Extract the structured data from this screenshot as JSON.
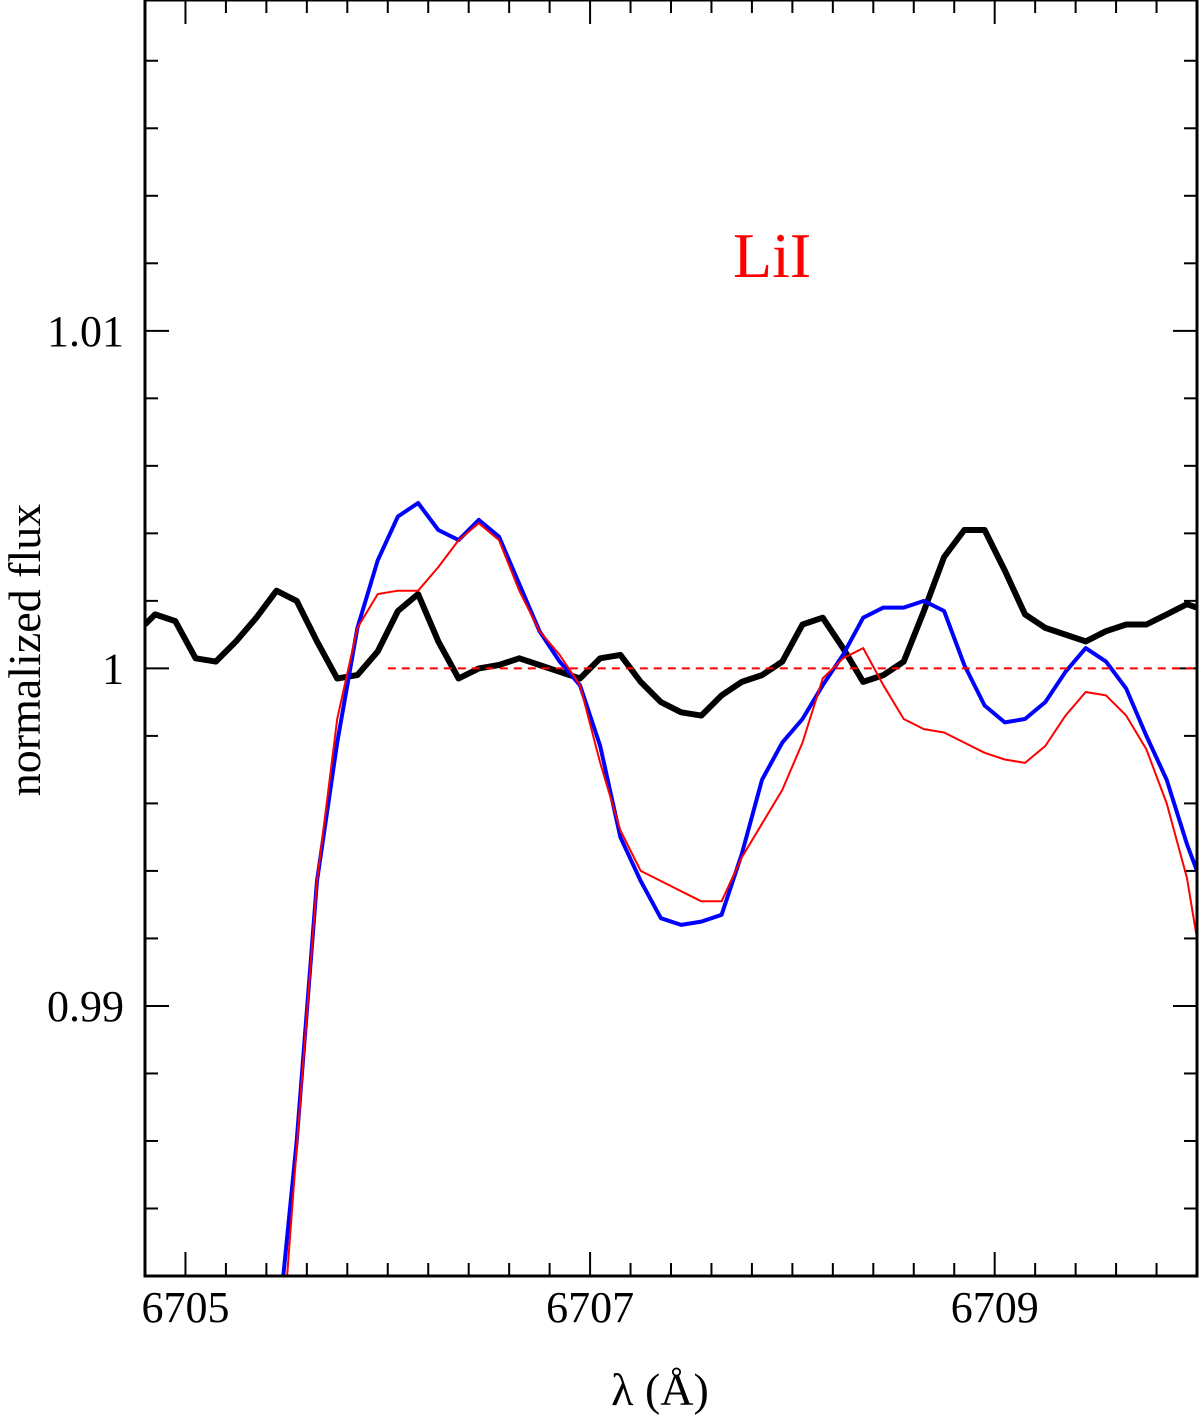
{
  "chart_data": {
    "type": "line",
    "title": "",
    "xlabel": "λ (Å)",
    "ylabel": "normalized flux",
    "xlim": [
      6704.8,
      6710.0
    ],
    "ylim": [
      0.982,
      1.0198
    ],
    "x_ticks_major": [
      6705,
      6707,
      6709
    ],
    "x_tick_labels": [
      "6705",
      "6707",
      "6709"
    ],
    "x_minor_step": 0.2,
    "y_ticks_major": [
      0.99,
      1.0,
      1.01
    ],
    "y_tick_labels": [
      "0.99",
      "1",
      "1.01"
    ],
    "y_minor_step": 0.002,
    "grid": false,
    "annotations": [
      {
        "text": "LiI",
        "x": 6707.9,
        "y": 1.0116,
        "color": "#ff0000"
      }
    ],
    "series": [
      {
        "color": "#000000",
        "style": "solid",
        "width": "thick",
        "x": [
          6704.8,
          6704.85,
          6704.95,
          6705.05,
          6705.15,
          6705.25,
          6705.35,
          6705.45,
          6705.55,
          6705.65,
          6705.75,
          6705.85,
          6705.95,
          6706.05,
          6706.15,
          6706.25,
          6706.35,
          6706.45,
          6706.55,
          6706.65,
          6706.75,
          6706.85,
          6706.95,
          6707.05,
          6707.15,
          6707.25,
          6707.35,
          6707.45,
          6707.55,
          6707.65,
          6707.75,
          6707.85,
          6707.95,
          6708.05,
          6708.15,
          6708.25,
          6708.35,
          6708.45,
          6708.55,
          6708.65,
          6708.75,
          6708.85,
          6708.95,
          6709.05,
          6709.15,
          6709.25,
          6709.35,
          6709.45,
          6709.55,
          6709.65,
          6709.75,
          6709.85,
          6709.95,
          6710.0
        ],
        "y": [
          1.0013,
          1.0016,
          1.0014,
          1.0003,
          1.0002,
          1.0008,
          1.0015,
          1.0023,
          1.002,
          1.0008,
          0.9997,
          0.9998,
          1.0005,
          1.0017,
          1.0022,
          1.0008,
          0.9997,
          1.0,
          1.0001,
          1.0003,
          1.0001,
          0.9999,
          0.9997,
          1.0003,
          1.0004,
          0.9996,
          0.999,
          0.9987,
          0.9986,
          0.9992,
          0.9996,
          0.9998,
          1.0002,
          1.0013,
          1.0015,
          1.0006,
          0.9996,
          0.9998,
          1.0002,
          1.0017,
          1.0033,
          1.0041,
          1.0041,
          1.0029,
          1.0016,
          1.0012,
          1.001,
          1.0008,
          1.0011,
          1.0013,
          1.0013,
          1.0016,
          1.0019,
          1.0018
        ]
      },
      {
        "color": "#0000ff",
        "style": "solid",
        "width": "medium",
        "x": [
          6705.48,
          6705.55,
          6705.65,
          6705.75,
          6705.85,
          6705.95,
          6706.05,
          6706.15,
          6706.25,
          6706.35,
          6706.45,
          6706.55,
          6706.65,
          6706.75,
          6706.85,
          6706.95,
          6707.05,
          6707.15,
          6707.25,
          6707.35,
          6707.45,
          6707.55,
          6707.65,
          6707.75,
          6707.85,
          6707.95,
          6708.05,
          6708.15,
          6708.25,
          6708.35,
          6708.45,
          6708.55,
          6708.65,
          6708.75,
          6708.85,
          6708.95,
          6709.05,
          6709.15,
          6709.25,
          6709.35,
          6709.45,
          6709.55,
          6709.65,
          6709.75,
          6709.85,
          6709.95,
          6710.0
        ],
        "y": [
          0.9818,
          0.986,
          0.9937,
          0.9978,
          1.0012,
          1.0032,
          1.0045,
          1.0049,
          1.0041,
          1.0038,
          1.0044,
          1.0039,
          1.0025,
          1.0011,
          1.0002,
          0.9995,
          0.9977,
          0.995,
          0.9937,
          0.9926,
          0.9924,
          0.9925,
          0.9927,
          0.9945,
          0.9967,
          0.9978,
          0.9985,
          0.9995,
          1.0004,
          1.0015,
          1.0018,
          1.0018,
          1.002,
          1.0017,
          1.0001,
          0.9989,
          0.9984,
          0.9985,
          0.999,
          0.9999,
          1.0006,
          1.0002,
          0.9994,
          0.998,
          0.9967,
          0.9948,
          0.994
        ]
      },
      {
        "color": "#ff0000",
        "style": "solid",
        "width": "thin",
        "x": [
          6705.5,
          6705.55,
          6705.65,
          6705.75,
          6705.85,
          6705.95,
          6706.05,
          6706.15,
          6706.25,
          6706.35,
          6706.45,
          6706.55,
          6706.65,
          6706.75,
          6706.85,
          6706.95,
          6707.05,
          6707.15,
          6707.25,
          6707.35,
          6707.45,
          6707.55,
          6707.65,
          6707.75,
          6707.85,
          6707.95,
          6708.05,
          6708.15,
          6708.25,
          6708.35,
          6708.45,
          6708.55,
          6708.65,
          6708.75,
          6708.85,
          6708.95,
          6709.05,
          6709.15,
          6709.25,
          6709.35,
          6709.45,
          6709.55,
          6709.65,
          6709.75,
          6709.85,
          6709.95,
          6710.0
        ],
        "y": [
          0.9818,
          0.9858,
          0.9937,
          0.9985,
          1.0012,
          1.0022,
          1.0023,
          1.0023,
          1.003,
          1.0038,
          1.0043,
          1.0038,
          1.0023,
          1.0011,
          1.0004,
          0.9995,
          0.9972,
          0.9952,
          0.994,
          0.9937,
          0.9934,
          0.9931,
          0.9931,
          0.9944,
          0.9954,
          0.9964,
          0.9978,
          0.9997,
          1.0003,
          1.0006,
          0.9995,
          0.9985,
          0.9982,
          0.9981,
          0.9978,
          0.9975,
          0.9973,
          0.9972,
          0.9977,
          0.9986,
          0.9993,
          0.9992,
          0.9986,
          0.9976,
          0.996,
          0.9938,
          0.992
        ]
      },
      {
        "color": "#ff0000",
        "style": "dashed",
        "width": "thin",
        "x": [
          6706.0,
          6710.0
        ],
        "y": [
          1.0,
          1.0
        ]
      }
    ]
  }
}
